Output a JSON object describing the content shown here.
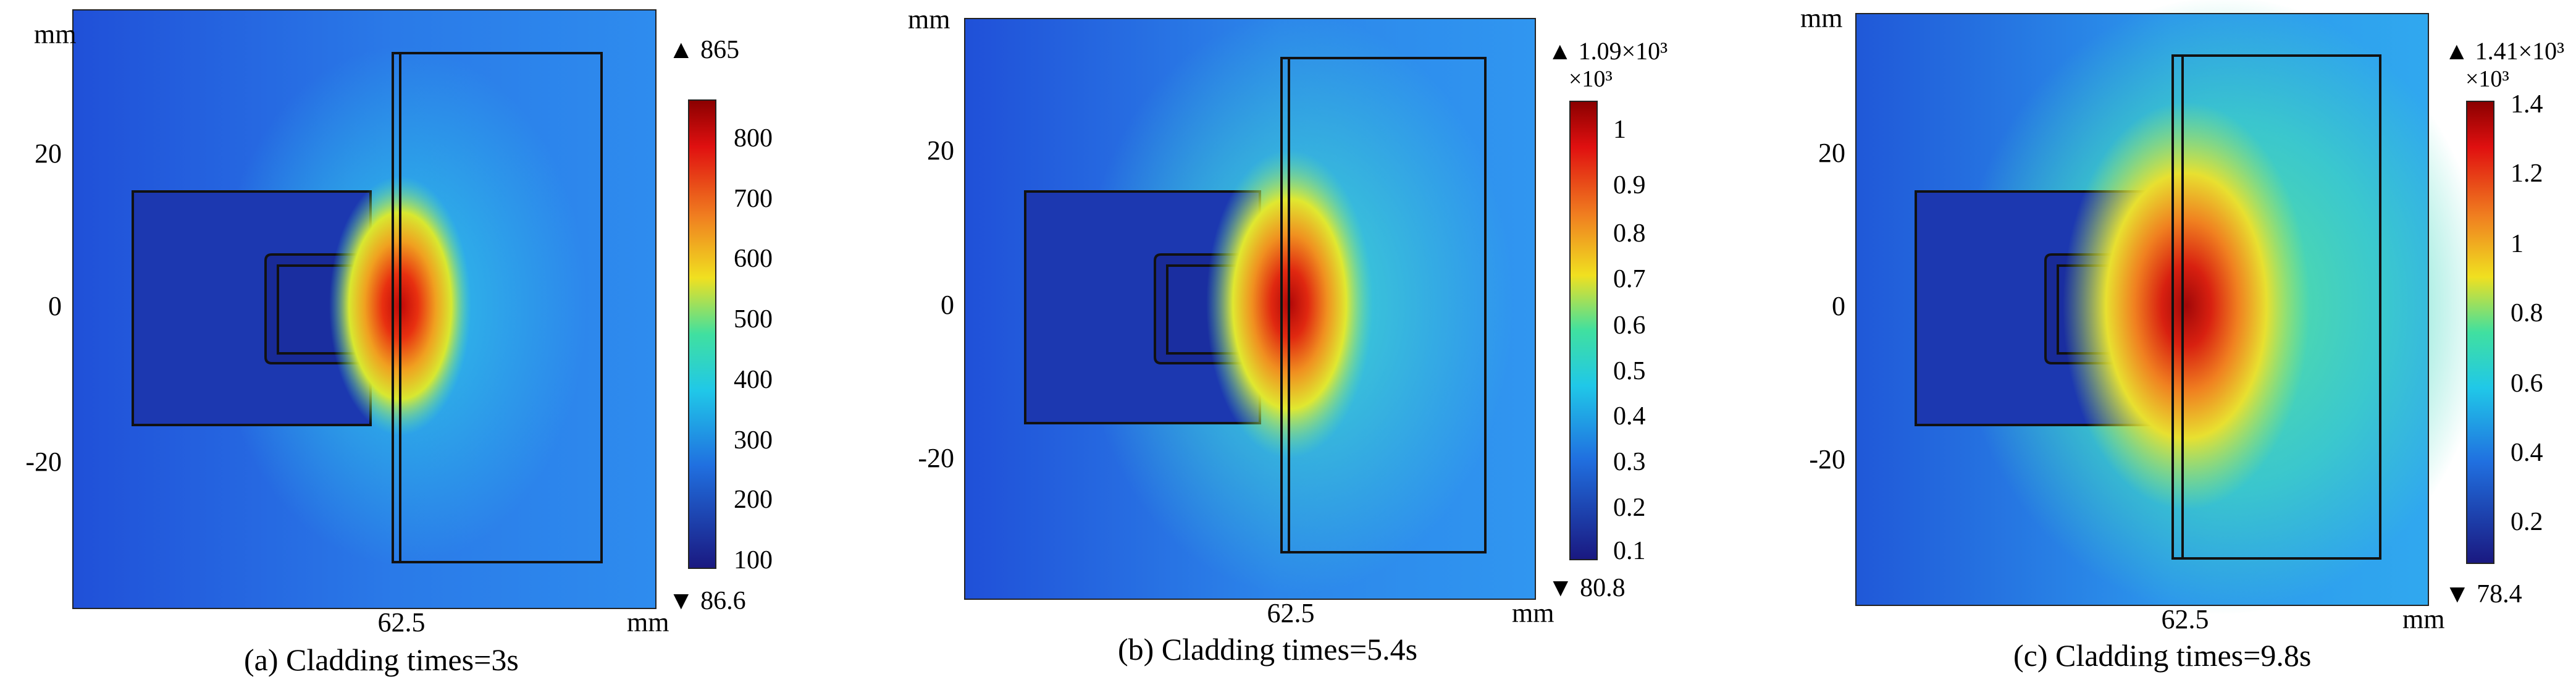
{
  "panels": [
    {
      "id": "a",
      "axis_unit_y": "mm",
      "axis_unit_x": "mm",
      "y_ticks": [
        "20",
        "0",
        "-20"
      ],
      "x_tick": "62.5",
      "colorbar_max_marker": "▲ 865",
      "colorbar_min_marker": "▼ 86.6",
      "colorbar_multiplier": "",
      "colorbar_ticks": [
        "800",
        "700",
        "600",
        "500",
        "400",
        "300",
        "200",
        "100"
      ],
      "caption": "(a)  Cladding times=3s"
    },
    {
      "id": "b",
      "axis_unit_y": "mm",
      "axis_unit_x": "mm",
      "y_ticks": [
        "20",
        "0",
        "-20"
      ],
      "x_tick": "62.5",
      "colorbar_max_marker": "▲ 1.09×10³",
      "colorbar_min_marker": "▼ 80.8",
      "colorbar_multiplier": "×10³",
      "colorbar_ticks": [
        "1",
        "0.9",
        "0.8",
        "0.7",
        "0.6",
        "0.5",
        "0.4",
        "0.3",
        "0.2",
        "0.1"
      ],
      "caption": "(b)  Cladding times=5.4s"
    },
    {
      "id": "c",
      "axis_unit_y": "mm",
      "axis_unit_x": "mm",
      "y_ticks": [
        "20",
        "0",
        "-20"
      ],
      "x_tick": "62.5",
      "colorbar_max_marker": "▲ 1.41×10³",
      "colorbar_min_marker": "▼ 78.4",
      "colorbar_multiplier": "×10³",
      "colorbar_ticks": [
        "1.4",
        "1.2",
        "1",
        "0.8",
        "0.6",
        "0.4",
        "0.2"
      ],
      "caption": "(c)  Cladding times=9.8s"
    }
  ],
  "colors": {
    "cold": "#1c2fa6",
    "cool": "#2a6ee0",
    "mid": "#1fc3e6",
    "warm": "#9ae35a",
    "hot_yellow": "#f0e020",
    "hot_red": "#d01010",
    "edge": "#111111"
  }
}
